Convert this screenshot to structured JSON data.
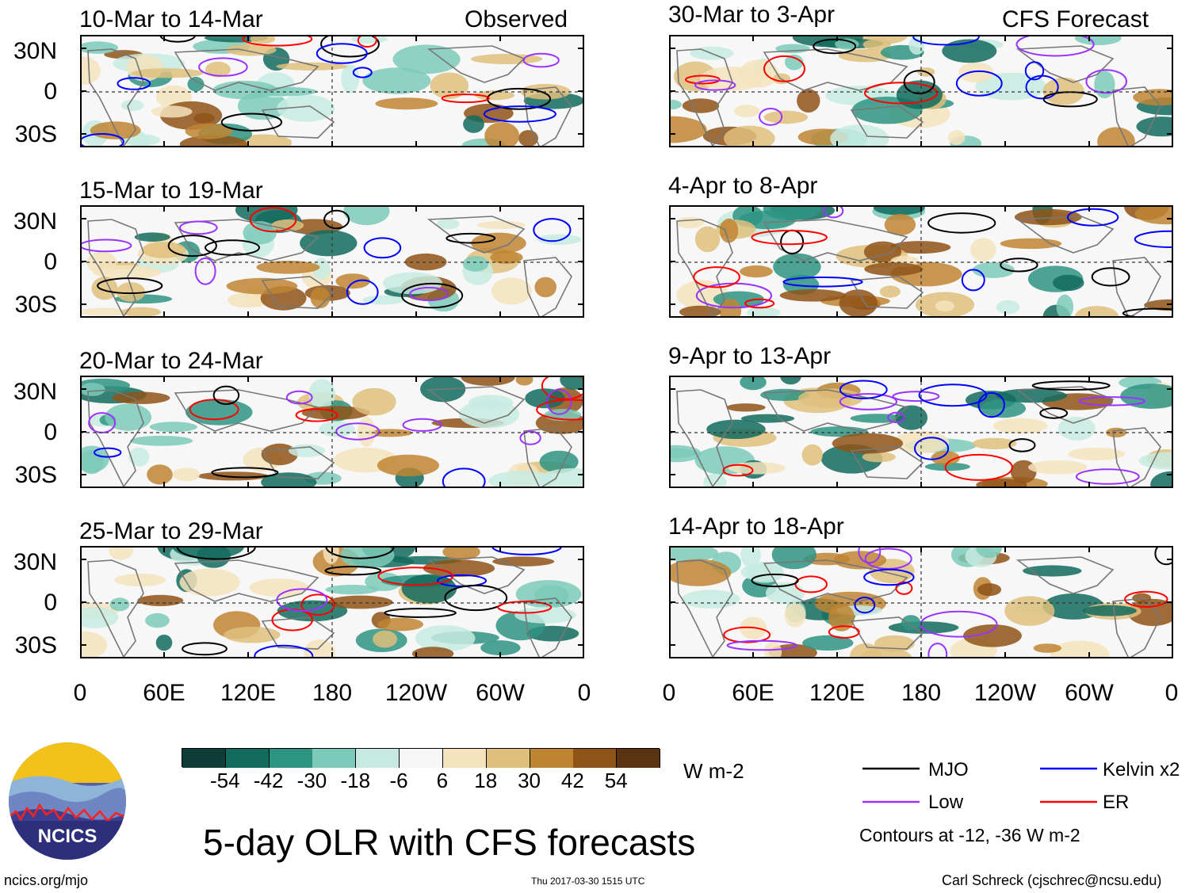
{
  "header": {
    "left_label": "Observed",
    "right_label": "CFS Forecast"
  },
  "y_ticks": [
    "30N",
    "0",
    "30S"
  ],
  "x_ticks": [
    "0",
    "60E",
    "120E",
    "180",
    "120W",
    "60W",
    "0"
  ],
  "observed_panels": [
    {
      "title": "10-Mar to 14-Mar"
    },
    {
      "title": "15-Mar to 19-Mar"
    },
    {
      "title": "20-Mar to 24-Mar"
    },
    {
      "title": "25-Mar to 29-Mar"
    }
  ],
  "forecast_panels": [
    {
      "title": "30-Mar to 3-Apr"
    },
    {
      "title": "4-Apr to 8-Apr"
    },
    {
      "title": "9-Apr to 13-Apr"
    },
    {
      "title": "14-Apr to 18-Apr"
    }
  ],
  "colorbar": {
    "labels": [
      "-54",
      "-42",
      "-30",
      "-18",
      "-6",
      "6",
      "18",
      "30",
      "42",
      "54"
    ],
    "colors": [
      "#0d3d36",
      "#136b5e",
      "#2e9482",
      "#7ccab9",
      "#c7ebe2",
      "#f7f7f7",
      "#f5e3bd",
      "#dfbf7c",
      "#bf8532",
      "#8f5418",
      "#5a3410"
    ],
    "units": "W m-2"
  },
  "legend": {
    "items": [
      {
        "label": "MJO",
        "color": "#000000"
      },
      {
        "label": "Kelvin x2",
        "color": "#0000ff"
      },
      {
        "label": "Low",
        "color": "#9933ff"
      },
      {
        "label": "ER",
        "color": "#ff0000"
      }
    ],
    "note": "Contours at -12, -36 W m-2"
  },
  "logo": {
    "text": "NCICS"
  },
  "main_title": "5-day OLR with CFS forecasts",
  "footer": {
    "url": "ncics.org/mjo",
    "timestamp": "Thu 2017-03-30 1515 UTC",
    "credit": "Carl Schreck (cjschrec@ncsu.edu)"
  }
}
